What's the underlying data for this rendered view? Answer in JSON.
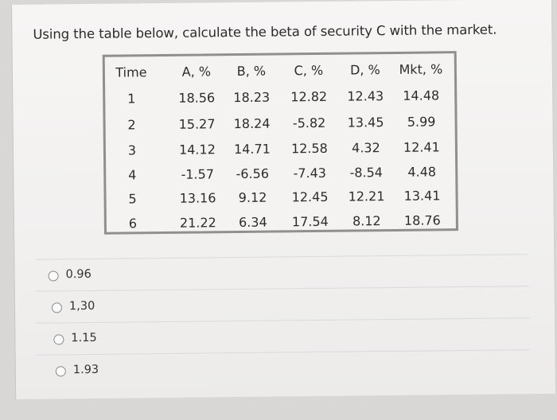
{
  "question": {
    "text": "Using the table below, calculate the beta of security C with the market."
  },
  "table": {
    "headers": [
      "Time",
      "A, %",
      "B, %",
      "C, %",
      "D, %",
      "Mkt, %"
    ],
    "rows": [
      [
        "1",
        "18.56",
        "18.23",
        "12.82",
        "12.43",
        "14.48"
      ],
      [
        "2",
        "15.27",
        "18.24",
        "-5.82",
        "13.45",
        "5.99"
      ],
      [
        "3",
        "14.12",
        "14.71",
        "12.58",
        "4.32",
        "12.41"
      ],
      [
        "4",
        "-1.57",
        "-6.56",
        "-7.43",
        "-8.54",
        "4.48"
      ],
      [
        "5",
        "13.16",
        "9.12",
        "12.45",
        "12.21",
        "13.41"
      ],
      [
        "6",
        "21.22",
        "6.34",
        "17.54",
        "8.12",
        "18.76"
      ]
    ]
  },
  "options": [
    {
      "label": "0.96",
      "selected": false
    },
    {
      "label": "1,30",
      "selected": false
    },
    {
      "label": "1.15",
      "selected": false
    },
    {
      "label": "1.93",
      "selected": false
    }
  ]
}
